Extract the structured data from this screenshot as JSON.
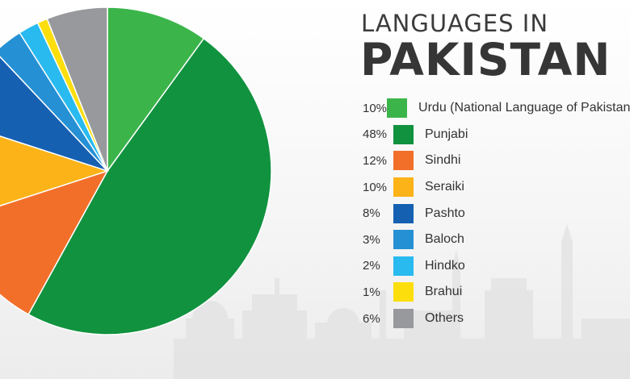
{
  "title": {
    "subtitle": "LANGUAGES IN",
    "main": "PAKISTAN"
  },
  "chart_data": {
    "type": "pie",
    "title": "LANGUAGES IN PAKISTAN",
    "legend_position": "right",
    "slices": [
      {
        "label": "Urdu (National Language of Pakistan)",
        "pct_label": "10%",
        "value": 10,
        "color": "#3bb54a"
      },
      {
        "label": "Punjabi",
        "pct_label": "48%",
        "value": 48,
        "color": "#11923f"
      },
      {
        "label": "Sindhi",
        "pct_label": "12%",
        "value": 12,
        "color": "#f26f2a"
      },
      {
        "label": "Seraiki",
        "pct_label": "10%",
        "value": 10,
        "color": "#fcb318"
      },
      {
        "label": "Pashto",
        "pct_label": "8%",
        "value": 8,
        "color": "#1660b2"
      },
      {
        "label": "Baloch",
        "pct_label": "3%",
        "value": 3,
        "color": "#2690d4"
      },
      {
        "label": "Hindko",
        "pct_label": "2%",
        "value": 2,
        "color": "#29baf0"
      },
      {
        "label": "Brahui",
        "pct_label": "1%",
        "value": 1,
        "color": "#fdde0d"
      },
      {
        "label": "Others",
        "pct_label": "6%",
        "value": 6,
        "color": "#98999d"
      }
    ]
  }
}
